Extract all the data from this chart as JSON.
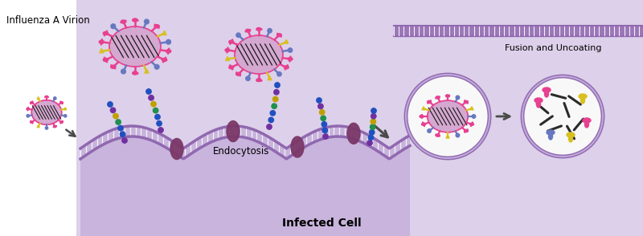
{
  "title": "Infected Cell",
  "title_fontsize": 10,
  "title_fontweight": "bold",
  "label_influenza": "Influenza A Virion",
  "label_endocytosis": "Endocytosis",
  "label_fusion": "Fusion and Uncoating",
  "bg_color": "#ffffff",
  "cell_fill_light": "#ddd0ea",
  "cell_fill_mid": "#c8b4dc",
  "cell_fill_dark": "#b89ccc",
  "cell_membrane_color": "#9068b0",
  "cell_membrane_inner": "#b090cc",
  "membrane_protein_color": "#7a3868",
  "virion_body_color": "#d4a8d0",
  "virion_body_edge": "#e84090",
  "virion_spike_pink": "#e84090",
  "virion_spike_blue": "#6878c0",
  "virion_spike_yellow": "#d8c020",
  "glycan_purple": "#7030a0",
  "glycan_blue": "#2050c0",
  "glycan_green": "#20904c",
  "glycan_yellow": "#c0a000",
  "stripes_color": "#1a1a1a",
  "arrow_color": "#4a4a4a",
  "endosome_fill": "#f8f8f8",
  "rna_color": "#2a2a2a"
}
